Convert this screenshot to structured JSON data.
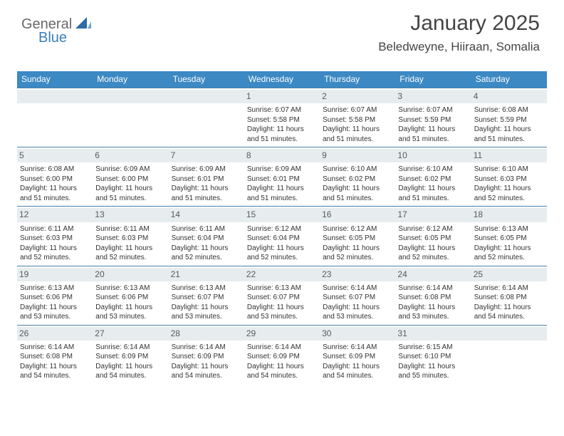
{
  "logo": {
    "text1": "General",
    "text2": "Blue"
  },
  "title": "January 2025",
  "location": "Beledweyne, Hiiraan, Somalia",
  "colors": {
    "header_bg": "#3c89c3",
    "header_text": "#ffffff",
    "day_number_bg": "#e7ecef",
    "day_number_text": "#5a5a5a",
    "rule": "#4a7fa8",
    "logo_general": "#6a6a6a",
    "logo_blue": "#3a7fb8",
    "body_text": "#333333"
  },
  "day_headers": [
    "Sunday",
    "Monday",
    "Tuesday",
    "Wednesday",
    "Thursday",
    "Friday",
    "Saturday"
  ],
  "weeks": [
    [
      null,
      null,
      null,
      {
        "n": "1",
        "sr": "6:07 AM",
        "ss": "5:58 PM",
        "dl": "11 hours and 51 minutes."
      },
      {
        "n": "2",
        "sr": "6:07 AM",
        "ss": "5:58 PM",
        "dl": "11 hours and 51 minutes."
      },
      {
        "n": "3",
        "sr": "6:07 AM",
        "ss": "5:59 PM",
        "dl": "11 hours and 51 minutes."
      },
      {
        "n": "4",
        "sr": "6:08 AM",
        "ss": "5:59 PM",
        "dl": "11 hours and 51 minutes."
      }
    ],
    [
      {
        "n": "5",
        "sr": "6:08 AM",
        "ss": "6:00 PM",
        "dl": "11 hours and 51 minutes."
      },
      {
        "n": "6",
        "sr": "6:09 AM",
        "ss": "6:00 PM",
        "dl": "11 hours and 51 minutes."
      },
      {
        "n": "7",
        "sr": "6:09 AM",
        "ss": "6:01 PM",
        "dl": "11 hours and 51 minutes."
      },
      {
        "n": "8",
        "sr": "6:09 AM",
        "ss": "6:01 PM",
        "dl": "11 hours and 51 minutes."
      },
      {
        "n": "9",
        "sr": "6:10 AM",
        "ss": "6:02 PM",
        "dl": "11 hours and 51 minutes."
      },
      {
        "n": "10",
        "sr": "6:10 AM",
        "ss": "6:02 PM",
        "dl": "11 hours and 51 minutes."
      },
      {
        "n": "11",
        "sr": "6:10 AM",
        "ss": "6:03 PM",
        "dl": "11 hours and 52 minutes."
      }
    ],
    [
      {
        "n": "12",
        "sr": "6:11 AM",
        "ss": "6:03 PM",
        "dl": "11 hours and 52 minutes."
      },
      {
        "n": "13",
        "sr": "6:11 AM",
        "ss": "6:03 PM",
        "dl": "11 hours and 52 minutes."
      },
      {
        "n": "14",
        "sr": "6:11 AM",
        "ss": "6:04 PM",
        "dl": "11 hours and 52 minutes."
      },
      {
        "n": "15",
        "sr": "6:12 AM",
        "ss": "6:04 PM",
        "dl": "11 hours and 52 minutes."
      },
      {
        "n": "16",
        "sr": "6:12 AM",
        "ss": "6:05 PM",
        "dl": "11 hours and 52 minutes."
      },
      {
        "n": "17",
        "sr": "6:12 AM",
        "ss": "6:05 PM",
        "dl": "11 hours and 52 minutes."
      },
      {
        "n": "18",
        "sr": "6:13 AM",
        "ss": "6:05 PM",
        "dl": "11 hours and 52 minutes."
      }
    ],
    [
      {
        "n": "19",
        "sr": "6:13 AM",
        "ss": "6:06 PM",
        "dl": "11 hours and 53 minutes."
      },
      {
        "n": "20",
        "sr": "6:13 AM",
        "ss": "6:06 PM",
        "dl": "11 hours and 53 minutes."
      },
      {
        "n": "21",
        "sr": "6:13 AM",
        "ss": "6:07 PM",
        "dl": "11 hours and 53 minutes."
      },
      {
        "n": "22",
        "sr": "6:13 AM",
        "ss": "6:07 PM",
        "dl": "11 hours and 53 minutes."
      },
      {
        "n": "23",
        "sr": "6:14 AM",
        "ss": "6:07 PM",
        "dl": "11 hours and 53 minutes."
      },
      {
        "n": "24",
        "sr": "6:14 AM",
        "ss": "6:08 PM",
        "dl": "11 hours and 53 minutes."
      },
      {
        "n": "25",
        "sr": "6:14 AM",
        "ss": "6:08 PM",
        "dl": "11 hours and 54 minutes."
      }
    ],
    [
      {
        "n": "26",
        "sr": "6:14 AM",
        "ss": "6:08 PM",
        "dl": "11 hours and 54 minutes."
      },
      {
        "n": "27",
        "sr": "6:14 AM",
        "ss": "6:09 PM",
        "dl": "11 hours and 54 minutes."
      },
      {
        "n": "28",
        "sr": "6:14 AM",
        "ss": "6:09 PM",
        "dl": "11 hours and 54 minutes."
      },
      {
        "n": "29",
        "sr": "6:14 AM",
        "ss": "6:09 PM",
        "dl": "11 hours and 54 minutes."
      },
      {
        "n": "30",
        "sr": "6:14 AM",
        "ss": "6:09 PM",
        "dl": "11 hours and 54 minutes."
      },
      {
        "n": "31",
        "sr": "6:15 AM",
        "ss": "6:10 PM",
        "dl": "11 hours and 55 minutes."
      },
      null
    ]
  ],
  "labels": {
    "sunrise_prefix": "Sunrise: ",
    "sunset_prefix": "Sunset: ",
    "daylight_prefix": "Daylight: "
  }
}
